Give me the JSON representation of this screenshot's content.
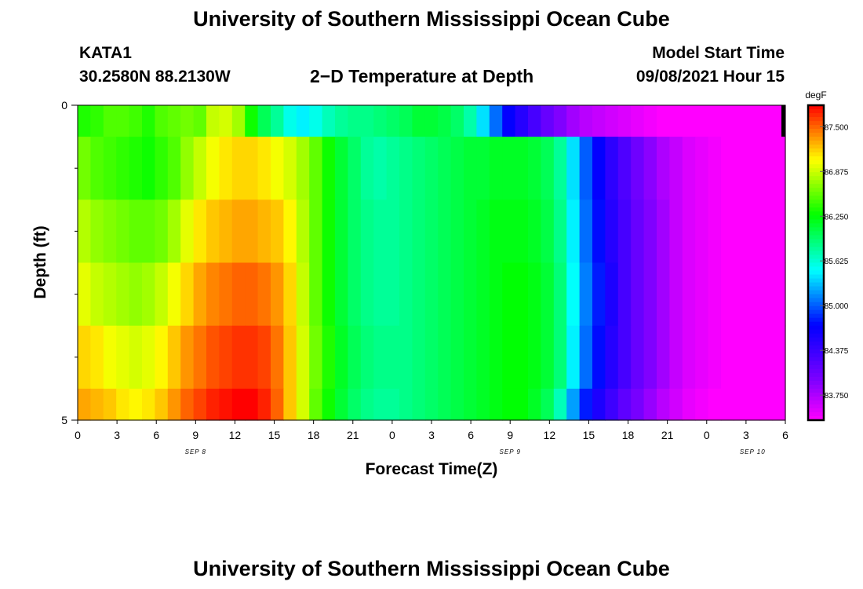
{
  "header": {
    "title": "University of Southern Mississippi Ocean Cube",
    "station": "KATA1",
    "coords": "30.2580N  88.2130W",
    "subtitle": "2−D Temperature at Depth",
    "model_label": "Model Start Time",
    "model_time": "09/08/2021 Hour 15"
  },
  "footer": {
    "title": "University of Southern Mississippi Ocean Cube"
  },
  "chart_data": {
    "type": "heatmap",
    "xlabel": "Forecast Time(Z)",
    "ylabel": "Depth (ft)",
    "x_tick_labels": [
      "0",
      "3",
      "6",
      "9",
      "12",
      "15",
      "18",
      "21",
      "0",
      "3",
      "6",
      "9",
      "12",
      "15",
      "18",
      "21",
      "0",
      "3",
      "6"
    ],
    "x_date_labels": [
      "SEP 8",
      "SEP 9",
      "SEP 10"
    ],
    "y_tick_labels": [
      "0",
      "5"
    ],
    "ylim": [
      0,
      5
    ],
    "xlim_hours": [
      0,
      54
    ],
    "colorbar": {
      "unit": "degF",
      "min": 83.4,
      "max": 87.8,
      "ticks": [
        "87.500",
        "86.875",
        "86.250",
        "85.625",
        "85.000",
        "84.375",
        "83.750"
      ]
    },
    "depth_rows": [
      {
        "depth": "0-0.5 ft",
        "values": [
          86.35,
          86.4,
          86.5,
          86.5,
          86.45,
          86.35,
          86.5,
          86.55,
          86.6,
          86.55,
          86.85,
          86.9,
          86.75,
          86.3,
          86.0,
          85.8,
          85.55,
          85.45,
          85.55,
          85.7,
          85.8,
          85.85,
          85.85,
          85.9,
          85.95,
          86.0,
          86.1,
          86.1,
          86.05,
          85.95,
          85.75,
          85.4,
          85.05,
          84.7,
          84.5,
          84.3,
          84.1,
          83.95,
          83.8,
          83.7,
          83.65,
          83.6,
          83.55,
          83.5,
          83.45,
          83.4,
          83.4,
          83.4,
          83.4,
          83.4,
          83.4,
          83.4,
          83.4,
          83.4,
          83.4
        ]
      },
      {
        "depth": "0.5-1.5 ft",
        "values": [
          86.6,
          86.5,
          86.45,
          86.4,
          86.35,
          86.3,
          86.4,
          86.5,
          86.7,
          86.85,
          87.0,
          87.1,
          87.15,
          87.15,
          87.1,
          87.0,
          86.9,
          86.75,
          86.55,
          86.3,
          86.1,
          85.95,
          85.8,
          85.75,
          85.8,
          85.85,
          85.9,
          85.95,
          86.0,
          86.05,
          86.1,
          86.1,
          86.15,
          86.15,
          86.15,
          86.1,
          86.0,
          85.8,
          85.4,
          85.0,
          84.7,
          84.45,
          84.25,
          84.05,
          83.9,
          83.75,
          83.65,
          83.55,
          83.5,
          83.45,
          83.4,
          83.4,
          83.4,
          83.4,
          83.4
        ]
      },
      {
        "depth": "1.5-2.5 ft",
        "values": [
          86.8,
          86.7,
          86.65,
          86.6,
          86.55,
          86.55,
          86.6,
          86.75,
          86.95,
          87.1,
          87.2,
          87.25,
          87.3,
          87.3,
          87.25,
          87.2,
          87.05,
          86.8,
          86.55,
          86.3,
          86.1,
          85.95,
          85.85,
          85.8,
          85.8,
          85.85,
          85.9,
          85.95,
          86.0,
          86.05,
          86.1,
          86.15,
          86.2,
          86.2,
          86.2,
          86.15,
          86.05,
          85.85,
          85.45,
          85.05,
          84.75,
          84.5,
          84.3,
          84.1,
          83.95,
          83.8,
          83.65,
          83.55,
          83.5,
          83.45,
          83.4,
          83.4,
          83.4,
          83.4,
          83.4
        ]
      },
      {
        "depth": "2.5-3.5 ft",
        "values": [
          86.95,
          86.85,
          86.8,
          86.75,
          86.7,
          86.75,
          86.85,
          87.0,
          87.15,
          87.3,
          87.4,
          87.45,
          87.5,
          87.5,
          87.45,
          87.35,
          87.15,
          86.85,
          86.55,
          86.3,
          86.1,
          85.95,
          85.85,
          85.8,
          85.8,
          85.85,
          85.9,
          85.95,
          86.0,
          86.05,
          86.1,
          86.15,
          86.2,
          86.25,
          86.25,
          86.2,
          86.1,
          85.9,
          85.5,
          85.1,
          84.8,
          84.55,
          84.3,
          84.1,
          83.95,
          83.8,
          83.65,
          83.55,
          83.5,
          83.45,
          83.4,
          83.4,
          83.4,
          83.4,
          83.4
        ]
      },
      {
        "depth": "3.5-4.5 ft",
        "values": [
          87.15,
          87.1,
          87.0,
          86.95,
          86.9,
          86.95,
          87.05,
          87.2,
          87.35,
          87.45,
          87.55,
          87.6,
          87.65,
          87.65,
          87.6,
          87.45,
          87.2,
          86.9,
          86.6,
          86.35,
          86.15,
          86.0,
          85.9,
          85.85,
          85.85,
          85.85,
          85.9,
          85.95,
          86.0,
          86.05,
          86.1,
          86.15,
          86.2,
          86.25,
          86.25,
          86.2,
          86.1,
          85.9,
          85.45,
          85.05,
          84.75,
          84.5,
          84.3,
          84.1,
          83.95,
          83.8,
          83.65,
          83.55,
          83.5,
          83.45,
          83.4,
          83.4,
          83.4,
          83.4,
          83.4
        ]
      },
      {
        "depth": "4.5-5 ft",
        "values": [
          87.3,
          87.25,
          87.2,
          87.1,
          87.05,
          87.1,
          87.2,
          87.35,
          87.5,
          87.6,
          87.7,
          87.75,
          87.8,
          87.8,
          87.7,
          87.5,
          87.2,
          86.9,
          86.55,
          86.3,
          86.1,
          85.95,
          85.85,
          85.8,
          85.8,
          85.85,
          85.9,
          85.95,
          86.0,
          86.05,
          86.1,
          86.15,
          86.2,
          86.25,
          86.25,
          86.15,
          86.0,
          85.7,
          85.2,
          84.8,
          84.55,
          84.35,
          84.15,
          84.0,
          83.85,
          83.7,
          83.6,
          83.5,
          83.45,
          83.4,
          83.4,
          83.4,
          83.4,
          83.4,
          83.4
        ]
      }
    ]
  }
}
